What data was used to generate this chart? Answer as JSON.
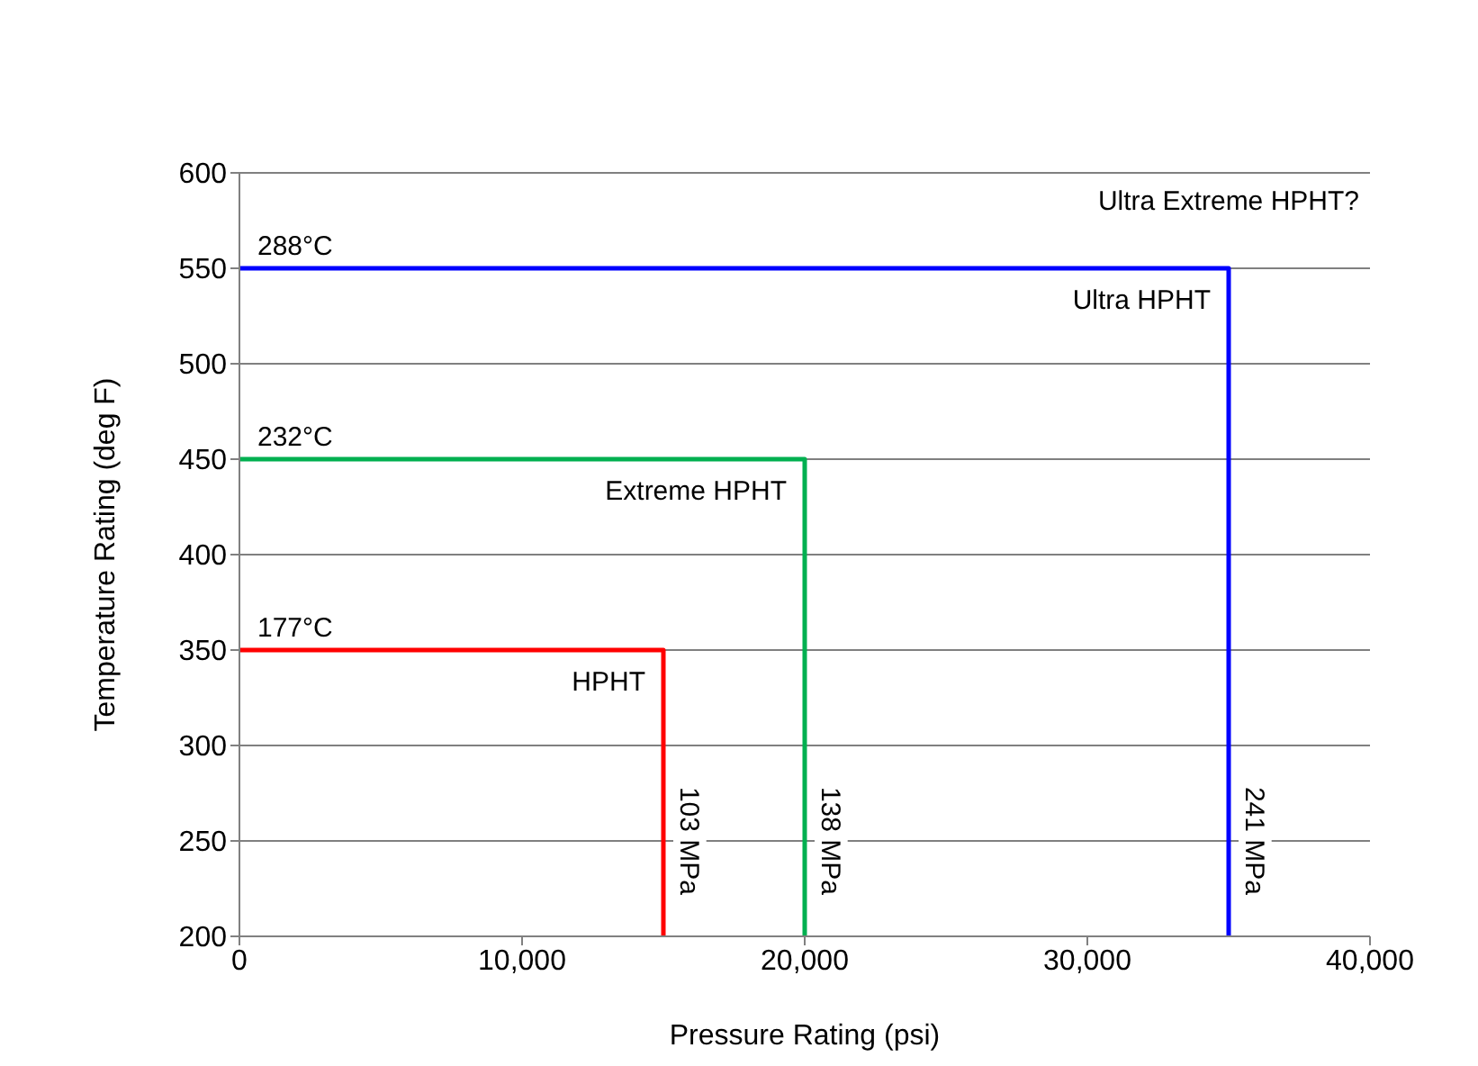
{
  "chart_data": {
    "type": "line",
    "xlabel": "Pressure Rating (psi)",
    "ylabel": "Temperature Rating (deg F)",
    "xlim": [
      0,
      40000
    ],
    "xticks": [
      {
        "value": 0,
        "label": "0"
      },
      {
        "value": 10000,
        "label": "10,000"
      },
      {
        "value": 20000,
        "label": "20,000"
      },
      {
        "value": 30000,
        "label": "30,000"
      },
      {
        "value": 40000,
        "label": "40,000"
      }
    ],
    "ylim": [
      200,
      600
    ],
    "yticks": [
      200,
      250,
      300,
      350,
      400,
      450,
      500,
      550,
      600
    ],
    "grid": "y",
    "marker": "none",
    "line_style": "solid",
    "series": [
      {
        "color": "#ff0000",
        "x": [
          0,
          15000,
          15000
        ],
        "values": [
          350,
          350,
          200
        ]
      },
      {
        "color": "#00b050",
        "x": [
          0,
          20000,
          20000
        ],
        "values": [
          450,
          450,
          200
        ]
      },
      {
        "color": "#0000ff",
        "x": [
          0,
          35000,
          35000
        ],
        "values": [
          550,
          550,
          200
        ]
      }
    ],
    "annotations": [
      {
        "text": "177°C",
        "x": 0,
        "y": 350
      },
      {
        "text": "232°C",
        "x": 0,
        "y": 450
      },
      {
        "text": "288°C",
        "x": 0,
        "y": 550
      },
      {
        "text": "HPHT",
        "x": 15000,
        "y": 350
      },
      {
        "text": "Extreme HPHT",
        "x": 20000,
        "y": 450
      },
      {
        "text": "Ultra HPHT",
        "x": 35000,
        "y": 550
      },
      "Ultra Extreme HPHT?",
      {
        "text": "103 MPa",
        "x": 15000,
        "y": 250
      },
      {
        "text": "138 MPa",
        "x": 20000,
        "y": 250
      },
      {
        "text": "241 MPa",
        "x": 35000,
        "y": 250
      }
    ]
  }
}
